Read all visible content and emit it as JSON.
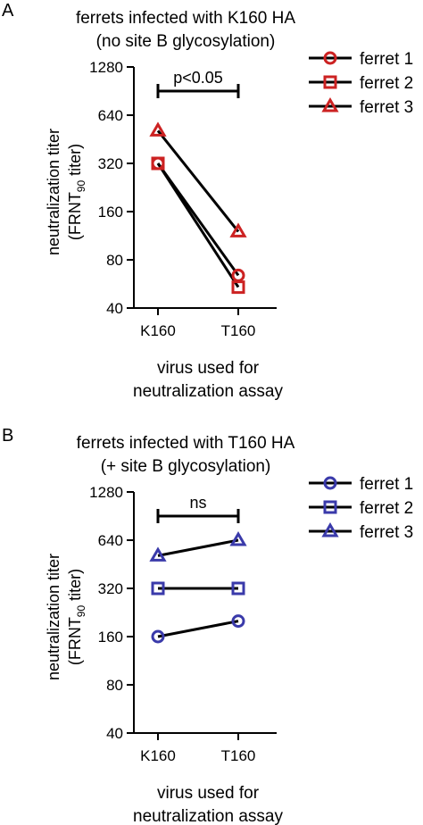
{
  "chart_data": [
    {
      "panel": "A",
      "type": "line",
      "title": [
        "ferrets infected with K160 HA",
        "(no site B glycosylation)"
      ],
      "ylabel": {
        "line1": "neutralization titer",
        "line2_pre": "(FRNT",
        "line2_sub": "90",
        "line2_post": " titer)"
      },
      "xlabel": [
        "virus used for",
        "neutralization assay"
      ],
      "scale": "log2",
      "ylim": [
        40,
        1280
      ],
      "yticks": [
        40,
        80,
        160,
        320,
        640,
        1280
      ],
      "ytick_labels": [
        "40",
        "80",
        "160",
        "320",
        "640",
        "1280"
      ],
      "categories": [
        "K160",
        "T160"
      ],
      "color": "#cc2222",
      "significance": "p<0.05",
      "legend_position": "right",
      "series": [
        {
          "name": "ferret 1",
          "marker": "circle",
          "values": [
            320,
            64
          ]
        },
        {
          "name": "ferret 2",
          "marker": "square",
          "values": [
            320,
            54
          ]
        },
        {
          "name": "ferret 3",
          "marker": "triangle",
          "values": [
            512,
            120
          ]
        }
      ]
    },
    {
      "panel": "B",
      "type": "line",
      "title": [
        "ferrets infected with T160 HA",
        "(+ site B glycosylation)"
      ],
      "ylabel": {
        "line1": "neutralization titer",
        "line2_pre": "(FRNT",
        "line2_sub": "90",
        "line2_post": " titer)"
      },
      "xlabel": [
        "virus used for",
        "neutralization assay"
      ],
      "scale": "log2",
      "ylim": [
        40,
        1280
      ],
      "yticks": [
        40,
        80,
        160,
        320,
        640,
        1280
      ],
      "ytick_labels": [
        "40",
        "80",
        "160",
        "320",
        "640",
        "1280"
      ],
      "categories": [
        "K160",
        "T160"
      ],
      "color": "#3a3aaa",
      "significance": "ns",
      "legend_position": "right",
      "series": [
        {
          "name": "ferret 1",
          "marker": "circle",
          "values": [
            160,
            200
          ]
        },
        {
          "name": "ferret 2",
          "marker": "square",
          "values": [
            320,
            320
          ]
        },
        {
          "name": "ferret 3",
          "marker": "triangle",
          "values": [
            512,
            640
          ]
        }
      ]
    }
  ]
}
